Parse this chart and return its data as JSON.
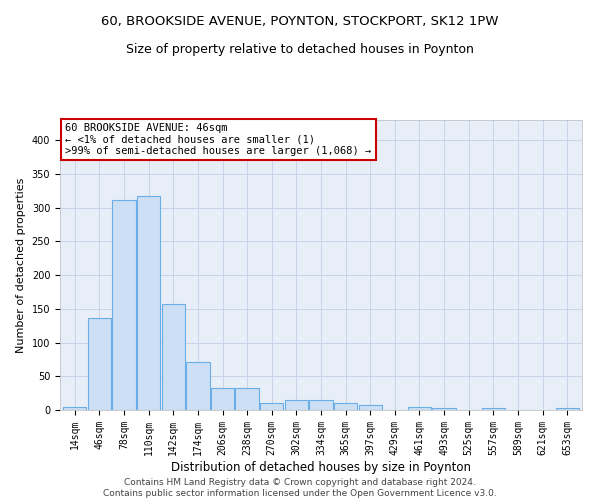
{
  "title1": "60, BROOKSIDE AVENUE, POYNTON, STOCKPORT, SK12 1PW",
  "title2": "Size of property relative to detached houses in Poynton",
  "xlabel": "Distribution of detached houses by size in Poynton",
  "ylabel": "Number of detached properties",
  "footnote": "Contains HM Land Registry data © Crown copyright and database right 2024.\nContains public sector information licensed under the Open Government Licence v3.0.",
  "bin_labels": [
    "14sqm",
    "46sqm",
    "78sqm",
    "110sqm",
    "142sqm",
    "174sqm",
    "206sqm",
    "238sqm",
    "270sqm",
    "302sqm",
    "334sqm",
    "365sqm",
    "397sqm",
    "429sqm",
    "461sqm",
    "493sqm",
    "525sqm",
    "557sqm",
    "589sqm",
    "621sqm",
    "653sqm"
  ],
  "bar_heights": [
    4,
    136,
    311,
    317,
    157,
    71,
    33,
    33,
    11,
    15,
    15,
    10,
    8,
    0,
    4,
    3,
    0,
    3,
    0,
    0,
    3
  ],
  "bar_color": "#ccdff4",
  "bar_edge_color": "#6aaee8",
  "annotation_box_text": "60 BROOKSIDE AVENUE: 46sqm\n← <1% of detached houses are smaller (1)\n>99% of semi-detached houses are larger (1,068) →",
  "annotation_box_color": "#ffffff",
  "annotation_box_edge_color": "#cc0000",
  "ylim": [
    0,
    430
  ],
  "yticks": [
    0,
    50,
    100,
    150,
    200,
    250,
    300,
    350,
    400
  ],
  "grid_color": "#c8d4e8",
  "background_color": "#e8eef8",
  "fig_background": "#ffffff",
  "title1_fontsize": 9.5,
  "title2_fontsize": 9,
  "xlabel_fontsize": 8.5,
  "ylabel_fontsize": 8,
  "tick_fontsize": 7,
  "annotation_fontsize": 7.5,
  "footnote_fontsize": 6.5
}
